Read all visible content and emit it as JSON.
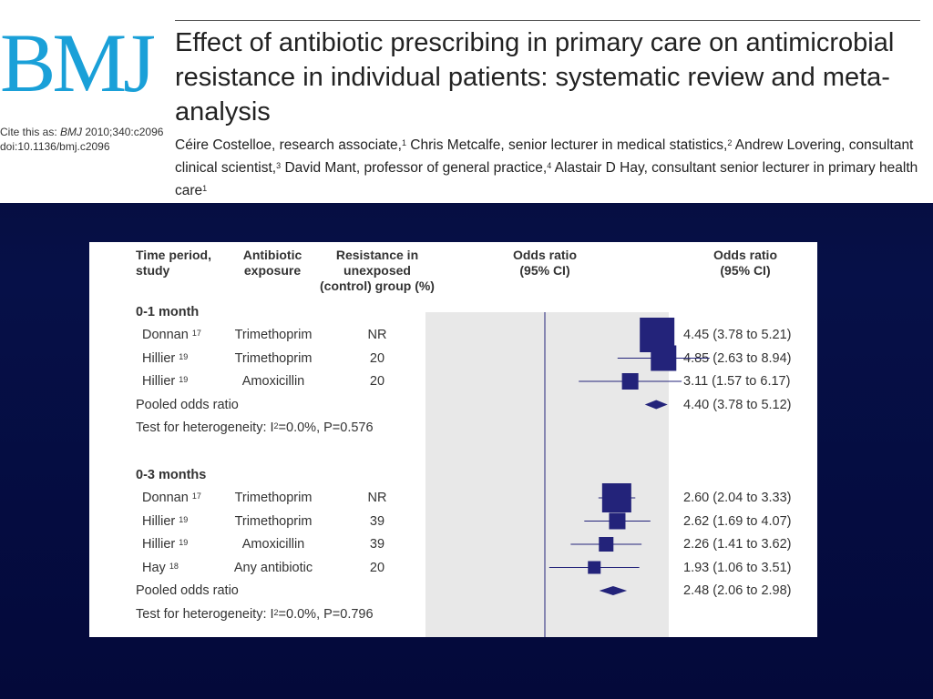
{
  "header": {
    "logo": "BMJ",
    "cite_line": "Cite this as: BMJ 2010;340:c2096",
    "doi_line": "doi:10.1136/bmj.c2096",
    "title": "Effect of antibiotic prescribing in primary care on antimicrobial resistance in individual patients: systematic review and meta-analysis",
    "authors": [
      {
        "name": "Céire Costelloe, research associate,",
        "aff": "1"
      },
      {
        "name": " Chris Metcalfe, senior lecturer in medical statistics,",
        "aff": "2"
      },
      {
        "name": " Andrew Lovering, consultant clinical scientist,",
        "aff": "3"
      },
      {
        "name": " David Mant, professor of general practice,",
        "aff": "4"
      },
      {
        "name": " Alastair D Hay, consultant senior lecturer in primary health care",
        "aff": "1"
      }
    ]
  },
  "table": {
    "headers": {
      "study": [
        "Time period,",
        "study"
      ],
      "exposure": [
        "Antibiotic",
        "exposure"
      ],
      "resistance": [
        "Resistance in",
        "unexposed",
        "(control) group (%)"
      ],
      "plot": [
        "Odds ratio",
        "(95% CI)"
      ],
      "or": [
        "Odds ratio",
        "(95% CI)"
      ]
    }
  },
  "chart_data": {
    "type": "forest",
    "reference_line": 1,
    "groups": [
      {
        "label": "0-1 month",
        "rows": [
          {
            "study": "Donnan",
            "ref": "17",
            "exposure": "Trimethoprim",
            "resistance": "NR",
            "or": 4.45,
            "lo": 3.78,
            "hi": 5.21,
            "text": "4.45 (3.78 to 5.21)"
          },
          {
            "study": "Hillier",
            "ref": "19",
            "exposure": "Trimethoprim",
            "resistance": "20",
            "or": 4.85,
            "lo": 2.63,
            "hi": 8.94,
            "text": "4.85 (2.63 to 8.94)"
          },
          {
            "study": "Hillier",
            "ref": "19",
            "exposure": "Amoxicillin",
            "resistance": "20",
            "or": 3.11,
            "lo": 1.57,
            "hi": 6.17,
            "text": "3.11 (1.57 to 6.17)"
          }
        ],
        "pooled": {
          "label": "Pooled odds ratio",
          "or": 4.4,
          "lo": 3.78,
          "hi": 5.12,
          "text": "4.40 (3.78 to 5.12)"
        },
        "heterogeneity": {
          "prefix": "Test for heterogeneity:  I",
          "suffix": "=0.0%, P=0.576"
        }
      },
      {
        "label": "0-3 months",
        "rows": [
          {
            "study": "Donnan",
            "ref": "17",
            "exposure": "Trimethoprim",
            "resistance": "NR",
            "or": 2.6,
            "lo": 2.04,
            "hi": 3.33,
            "text": "2.60 (2.04 to 3.33)"
          },
          {
            "study": "Hillier",
            "ref": "19",
            "exposure": "Trimethoprim",
            "resistance": "39",
            "or": 2.62,
            "lo": 1.69,
            "hi": 4.07,
            "text": "2.62 (1.69 to 4.07)"
          },
          {
            "study": "Hillier",
            "ref": "19",
            "exposure": "Amoxicillin",
            "resistance": "39",
            "or": 2.26,
            "lo": 1.41,
            "hi": 3.62,
            "text": "2.26 (1.41 to 3.62)"
          },
          {
            "study": "Hay",
            "ref": "18",
            "exposure": "Any antibiotic",
            "resistance": "20",
            "or": 1.93,
            "lo": 1.06,
            "hi": 3.51,
            "text": "1.93 (1.06 to 3.51)"
          }
        ],
        "pooled": {
          "label": "Pooled odds ratio",
          "or": 2.48,
          "lo": 2.06,
          "hi": 2.98,
          "text": "2.48 (2.06 to 2.98)"
        },
        "heterogeneity": {
          "prefix": "Test for heterogeneity:  I",
          "suffix": "=0.0%, P=0.796"
        }
      }
    ],
    "colors": {
      "marker": "#23237a",
      "line": "#23237a",
      "plot_bg": "#e8e8e8",
      "logo": "#1aa0d8"
    }
  }
}
